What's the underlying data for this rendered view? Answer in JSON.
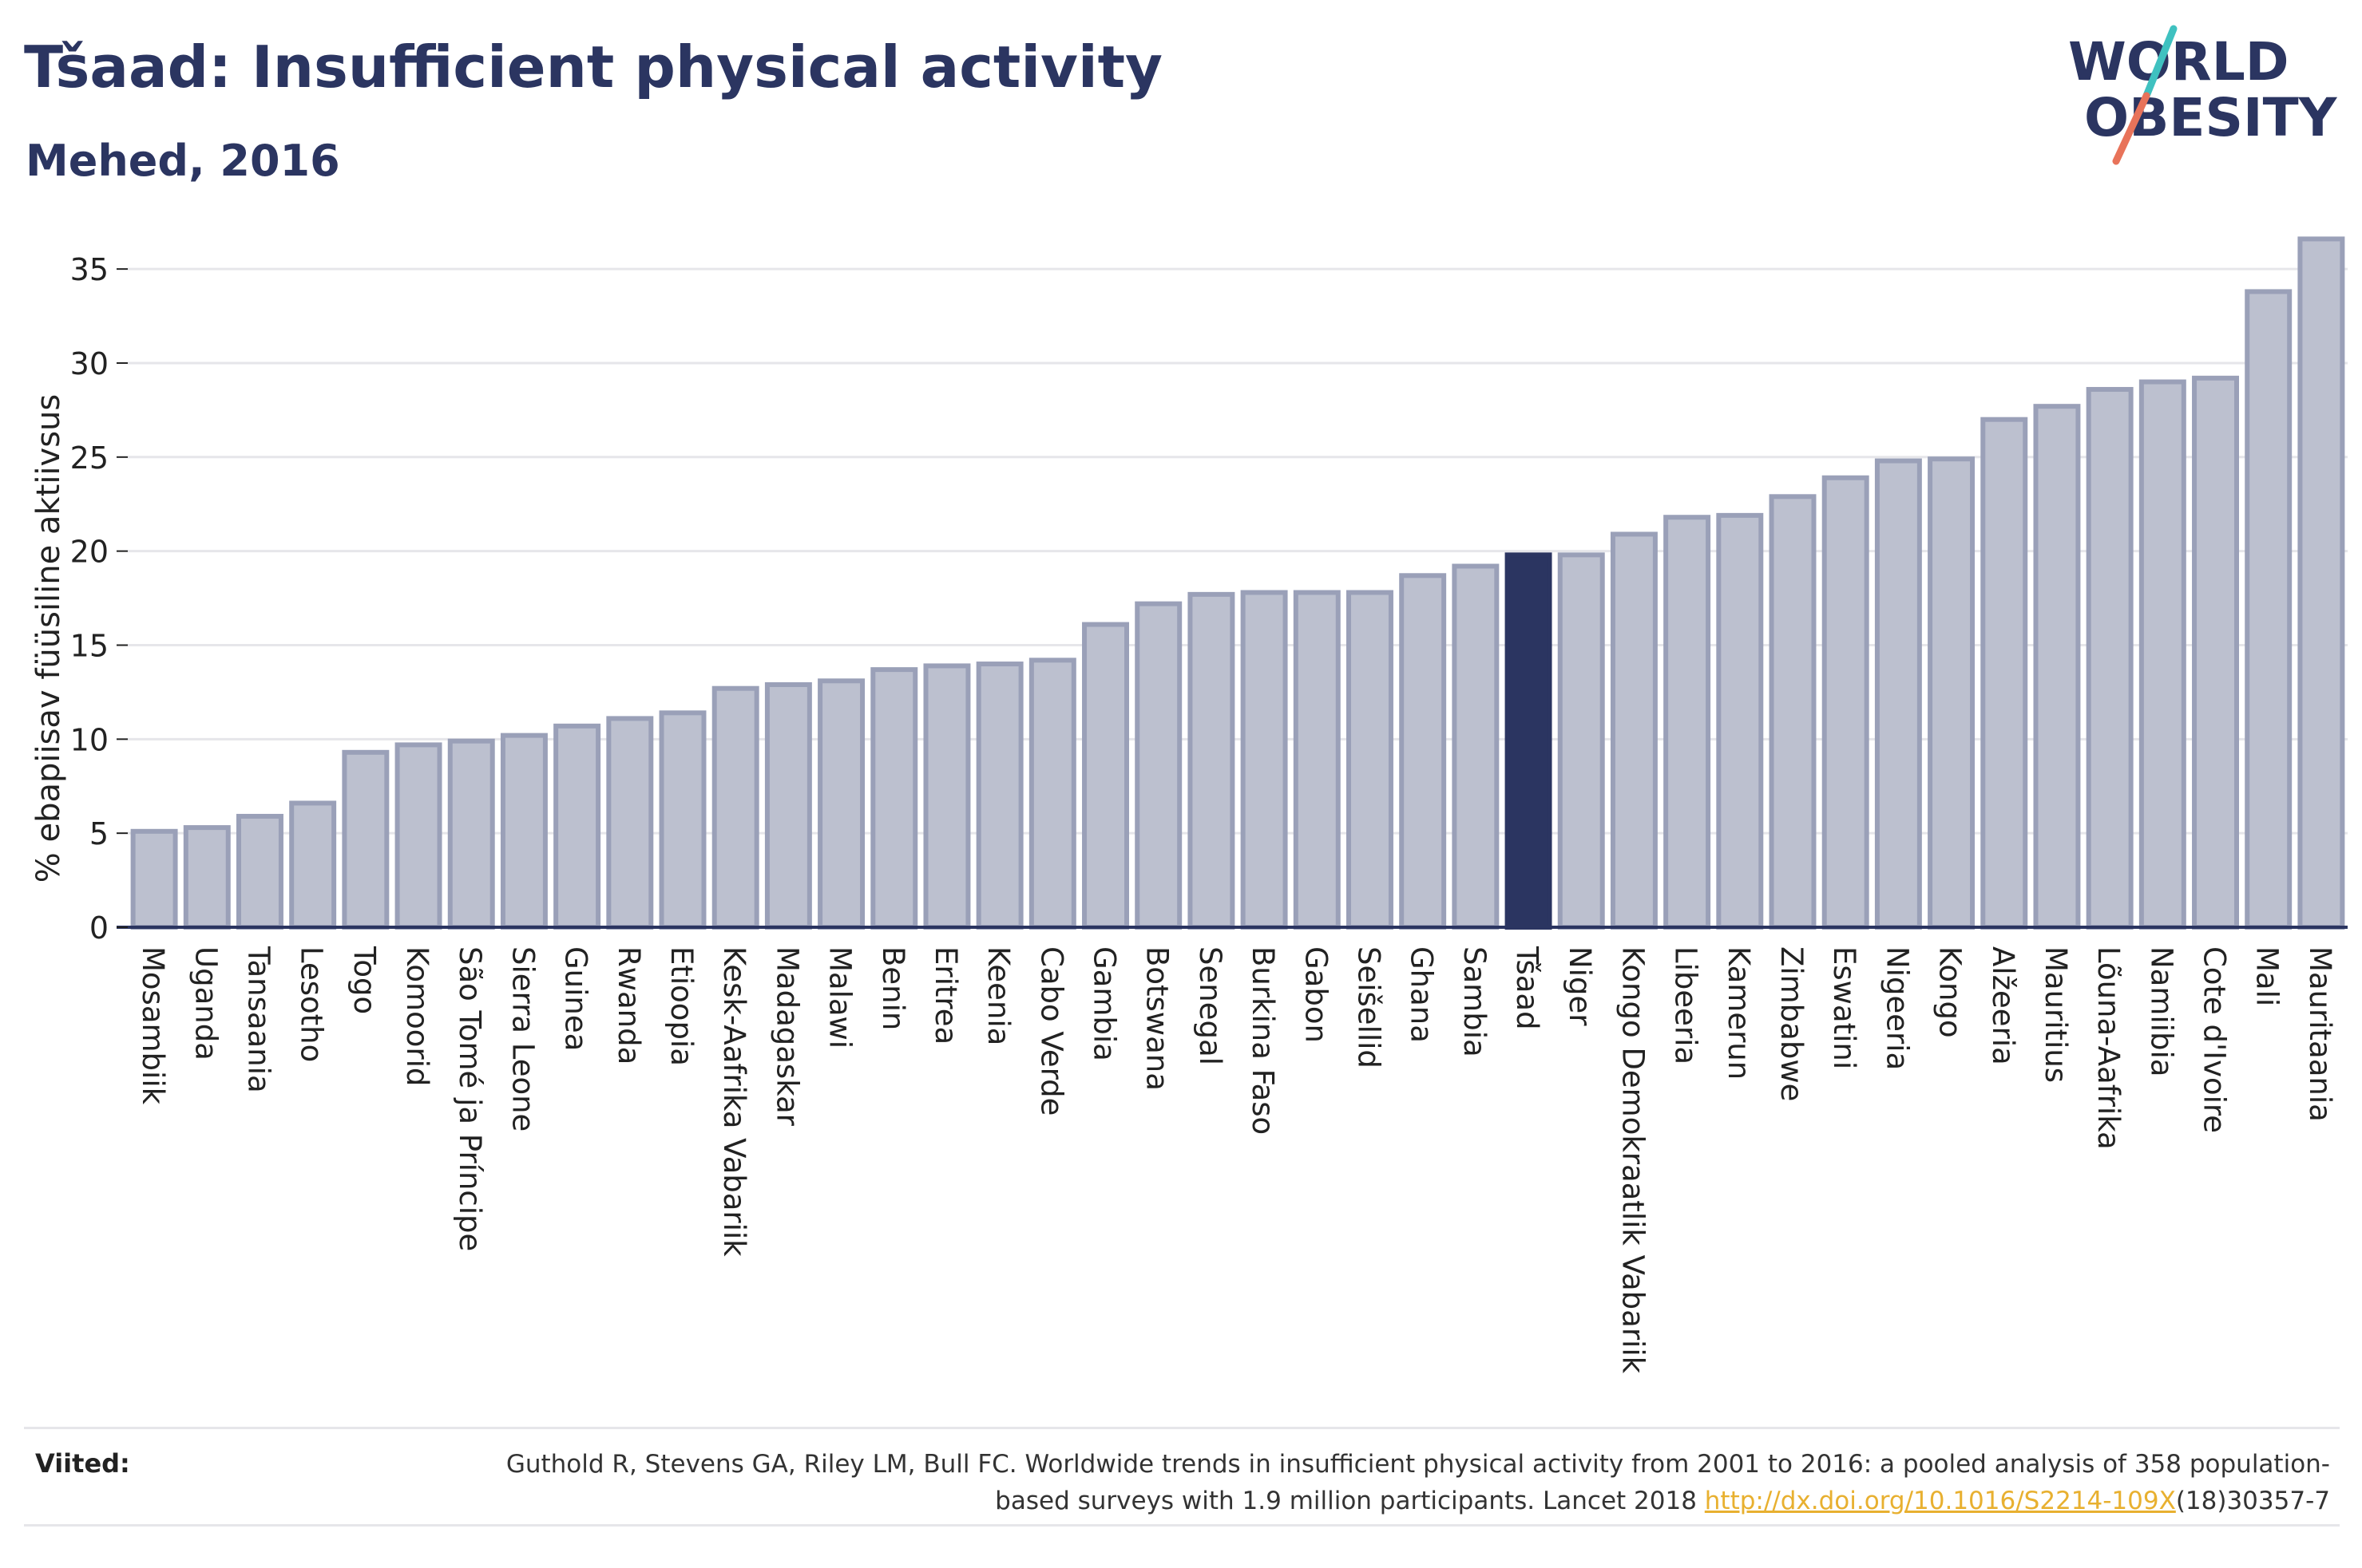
{
  "header": {
    "title": "Tšaad: Insufficient physical activity",
    "subtitle": "Mehed, 2016"
  },
  "logo": {
    "line1": "WORLD",
    "line2": "OBESITY",
    "text_color": "#2b3561",
    "slash_colors": [
      "#3fc1c0",
      "#e8735a"
    ]
  },
  "colors": {
    "bar_fill": "#bcc0cf",
    "bar_stroke": "#9aa0b8",
    "highlight_fill": "#2b3561",
    "axis": "#2b3561",
    "grid": "#e6e6ea",
    "text": "#222222"
  },
  "chart_data": {
    "type": "bar",
    "ylabel": "% ebapiisav füüsiline aktiivsus",
    "ylim": [
      0,
      37
    ],
    "yticks": [
      0,
      5,
      10,
      15,
      20,
      25,
      30,
      35
    ],
    "grid": true,
    "highlight": "Tšaad",
    "categories": [
      "Mosambiik",
      "Uganda",
      "Tansaania",
      "Lesotho",
      "Togo",
      "Komoorid",
      "São Tomé ja Príncipe",
      "Sierra Leone",
      "Guinea",
      "Rwanda",
      "Etioopia",
      "Kesk-Aafrika Vabariik",
      "Madagaskar",
      "Malawi",
      "Benin",
      "Eritrea",
      "Keenia",
      "Cabo Verde",
      "Gambia",
      "Botswana",
      "Senegal",
      "Burkina Faso",
      "Gabon",
      "Seišellid",
      "Ghana",
      "Sambia",
      "Tšaad",
      "Niger",
      "Kongo Demokraatlik Vabariik",
      "Libeeria",
      "Kamerun",
      "Zimbabwe",
      "Eswatini",
      "Nigeeria",
      "Kongo",
      "Alžeeria",
      "Mauritius",
      "Lõuna-Aafrika",
      "Namiibia",
      "Cote d'Ivoire",
      "Mali",
      "Mauritaania"
    ],
    "values": [
      5.1,
      5.3,
      5.9,
      6.6,
      9.3,
      9.7,
      9.9,
      10.2,
      10.7,
      11.1,
      11.4,
      12.7,
      12.9,
      13.1,
      13.7,
      13.9,
      14.0,
      14.2,
      16.1,
      17.2,
      17.7,
      17.8,
      17.8,
      17.8,
      18.7,
      19.2,
      19.8,
      19.8,
      20.9,
      21.8,
      21.9,
      22.9,
      23.9,
      24.8,
      24.9,
      27.0,
      27.7,
      28.6,
      29.0,
      29.2,
      33.8,
      36.6
    ]
  },
  "references": {
    "label": "Viited:",
    "text_before": "Guthold R, Stevens GA, Riley LM, Bull FC. Worldwide trends in insufficient physical activity from 2001 to 2016: a pooled analysis of 358 population-based surveys with 1.9 million participants. Lancet 2018 ",
    "link": "http://dx.doi.org/10.1016/S2214-109X",
    "text_after": "(18)30357-7"
  }
}
